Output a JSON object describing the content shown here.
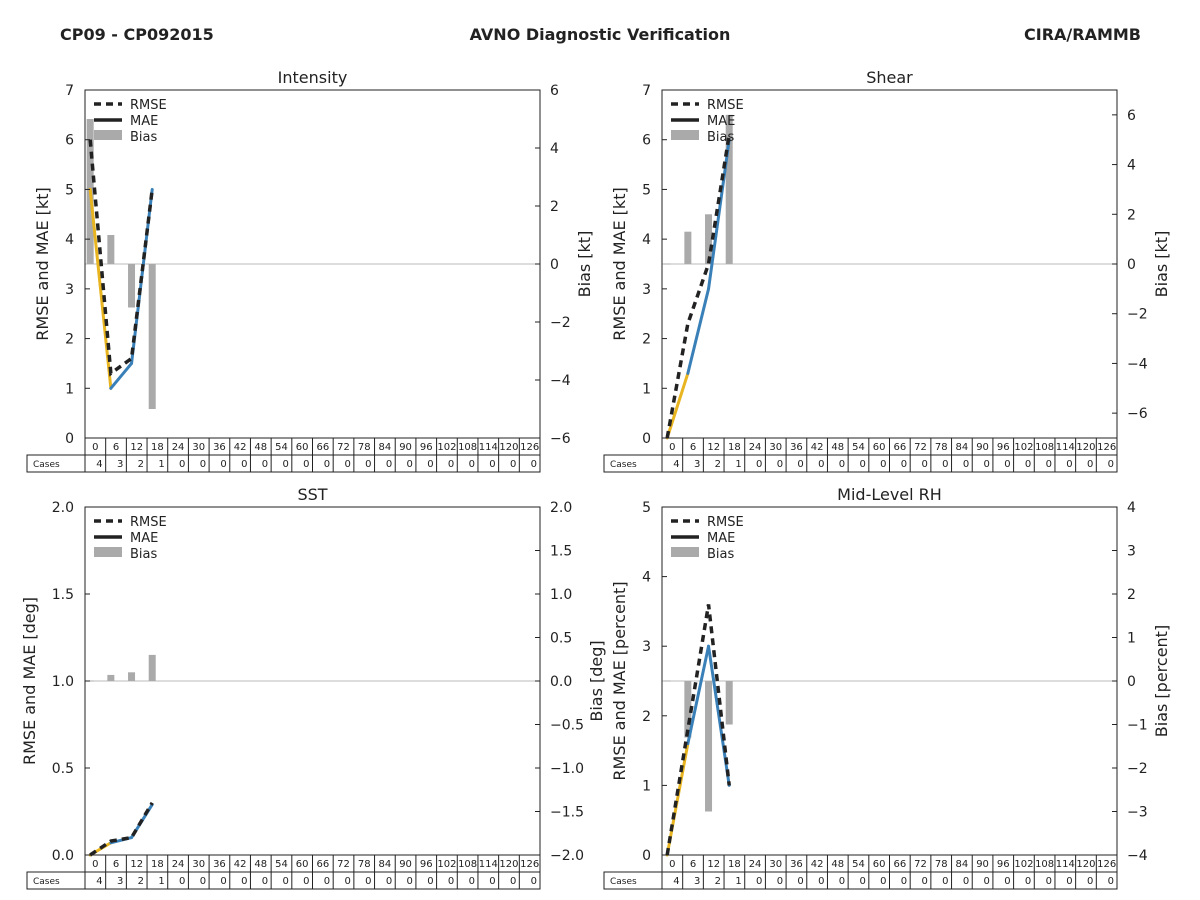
{
  "header": {
    "left": "CP09 - CP092015",
    "center": "AVNO Diagnostic Verification",
    "right": "CIRA/RAMMB"
  },
  "legend_labels": [
    "RMSE",
    "MAE",
    "Bias"
  ],
  "cases_label": "Cases",
  "colors": {
    "mae_early": "#e8b520",
    "mae_late": "#3a80b8",
    "rmse": "#222222",
    "bias": "#aaaaaa",
    "zero_line": "#bbbbbb"
  },
  "chart_data": [
    {
      "type": "line",
      "title": "Intensity",
      "ylabel": "RMSE and MAE [kt]",
      "y2label": "Bias [kt]",
      "ylim": [
        0,
        7
      ],
      "yticks": [
        "0",
        "1",
        "2",
        "3",
        "4",
        "5",
        "6",
        "7"
      ],
      "y2lim": [
        -6,
        6
      ],
      "y2ticks": [
        "−6",
        "−4",
        "−2",
        "0",
        "2",
        "4",
        "6"
      ],
      "x": [
        0,
        6,
        12,
        18
      ],
      "rmse": [
        6.0,
        1.3,
        1.6,
        5.0
      ],
      "mae": [
        5.0,
        1.0,
        1.5,
        5.0
      ],
      "bias": [
        5.0,
        1.0,
        -1.5,
        -5.0
      ],
      "hours": [
        "0",
        "6",
        "12",
        "18",
        "24",
        "30",
        "36",
        "42",
        "48",
        "54",
        "60",
        "66",
        "72",
        "78",
        "84",
        "90",
        "96",
        "102",
        "108",
        "114",
        "120",
        "126"
      ],
      "cases": [
        "4",
        "3",
        "2",
        "1",
        "0",
        "0",
        "0",
        "0",
        "0",
        "0",
        "0",
        "0",
        "0",
        "0",
        "0",
        "0",
        "0",
        "0",
        "0",
        "0",
        "0",
        "0"
      ]
    },
    {
      "type": "line",
      "title": "Shear",
      "ylabel": "RMSE and MAE [kt]",
      "y2label": "Bias [kt]",
      "ylim": [
        0,
        7
      ],
      "yticks": [
        "0",
        "1",
        "2",
        "3",
        "4",
        "5",
        "6",
        "7"
      ],
      "y2lim": [
        -7,
        7
      ],
      "y2ticks": [
        "−6",
        "−4",
        "−2",
        "0",
        "2",
        "4",
        "6"
      ],
      "x": [
        0,
        6,
        12,
        18
      ],
      "rmse": [
        0.0,
        2.3,
        3.5,
        6.1
      ],
      "mae": [
        0.0,
        1.3,
        3.0,
        6.0
      ],
      "bias": [
        0.0,
        1.3,
        2.0,
        6.0
      ],
      "hours": [
        "0",
        "6",
        "12",
        "18",
        "24",
        "30",
        "36",
        "42",
        "48",
        "54",
        "60",
        "66",
        "72",
        "78",
        "84",
        "90",
        "96",
        "102",
        "108",
        "114",
        "120",
        "126"
      ],
      "cases": [
        "4",
        "3",
        "2",
        "1",
        "0",
        "0",
        "0",
        "0",
        "0",
        "0",
        "0",
        "0",
        "0",
        "0",
        "0",
        "0",
        "0",
        "0",
        "0",
        "0",
        "0",
        "0"
      ]
    },
    {
      "type": "line",
      "title": "SST",
      "ylabel": "RMSE and MAE [deg]",
      "y2label": "Bias [deg]",
      "ylim": [
        0,
        2
      ],
      "yticks": [
        "0.0",
        "0.5",
        "1.0",
        "1.5",
        "2.0"
      ],
      "y2lim": [
        -2,
        2
      ],
      "y2ticks": [
        "−2.0",
        "−1.5",
        "−1.0",
        "−0.5",
        "0.0",
        "0.5",
        "1.0",
        "1.5",
        "2.0"
      ],
      "x": [
        0,
        6,
        12,
        18
      ],
      "rmse": [
        0.0,
        0.08,
        0.1,
        0.3
      ],
      "mae": [
        0.0,
        0.07,
        0.1,
        0.29
      ],
      "bias": [
        0.0,
        0.07,
        0.1,
        0.3
      ],
      "hours": [
        "0",
        "6",
        "12",
        "18",
        "24",
        "30",
        "36",
        "42",
        "48",
        "54",
        "60",
        "66",
        "72",
        "78",
        "84",
        "90",
        "96",
        "102",
        "108",
        "114",
        "120",
        "126"
      ],
      "cases": [
        "4",
        "3",
        "2",
        "1",
        "0",
        "0",
        "0",
        "0",
        "0",
        "0",
        "0",
        "0",
        "0",
        "0",
        "0",
        "0",
        "0",
        "0",
        "0",
        "0",
        "0",
        "0"
      ]
    },
    {
      "type": "line",
      "title": "Mid-Level RH",
      "ylabel": "RMSE and MAE [percent]",
      "y2label": "Bias [percent]",
      "ylim": [
        0,
        5
      ],
      "yticks": [
        "0",
        "1",
        "2",
        "3",
        "4",
        "5"
      ],
      "y2lim": [
        -4,
        4
      ],
      "y2ticks": [
        "−4",
        "−3",
        "−2",
        "−1",
        "0",
        "1",
        "2",
        "3",
        "4"
      ],
      "x": [
        0,
        6,
        12,
        18
      ],
      "rmse": [
        0.0,
        1.8,
        3.6,
        1.0
      ],
      "mae": [
        0.0,
        1.6,
        3.0,
        1.0
      ],
      "bias": [
        0.0,
        -1.3,
        -3.0,
        -1.0
      ],
      "hours": [
        "0",
        "6",
        "12",
        "18",
        "24",
        "30",
        "36",
        "42",
        "48",
        "54",
        "60",
        "66",
        "72",
        "78",
        "84",
        "90",
        "96",
        "102",
        "108",
        "114",
        "120",
        "126"
      ],
      "cases": [
        "4",
        "3",
        "2",
        "1",
        "0",
        "0",
        "0",
        "0",
        "0",
        "0",
        "0",
        "0",
        "0",
        "0",
        "0",
        "0",
        "0",
        "0",
        "0",
        "0",
        "0",
        "0"
      ]
    }
  ]
}
